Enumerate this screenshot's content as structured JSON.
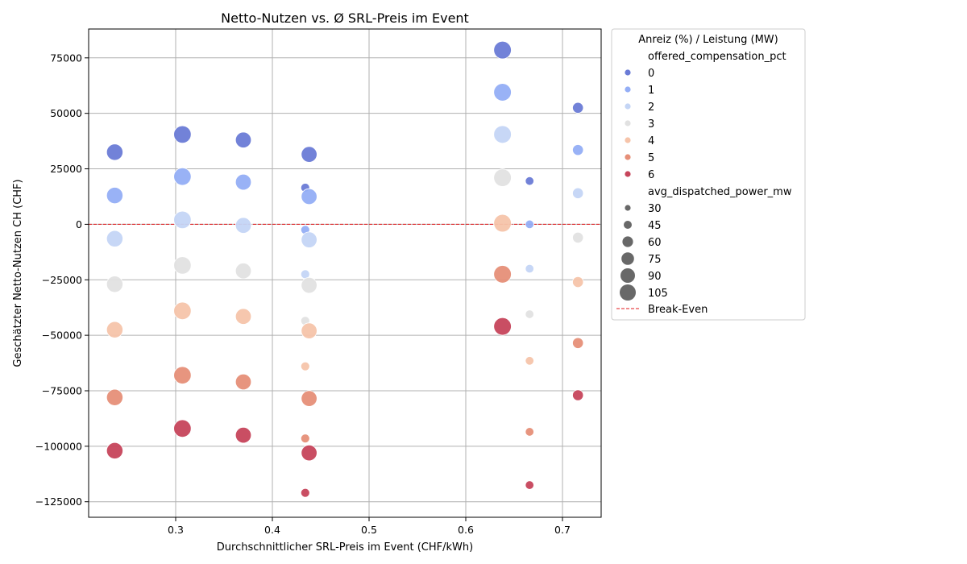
{
  "chart_data": {
    "type": "scatter",
    "title": "Netto-Nutzen vs. Ø SRL-Preis im Event",
    "xlabel": "Durchschnittlicher SRL-Preis im Event (CHF/kWh)",
    "ylabel": "Geschätzter Netto-Nutzen CH (CHF)",
    "xlim": [
      0.21,
      0.74
    ],
    "ylim": [
      -132000,
      88000
    ],
    "xticks": [
      0.3,
      0.4,
      0.5,
      0.6,
      0.7
    ],
    "xtick_labels": [
      "0.3",
      "0.4",
      "0.5",
      "0.6",
      "0.7"
    ],
    "yticks": [
      75000,
      50000,
      25000,
      0,
      -25000,
      -50000,
      -75000,
      -100000,
      -125000
    ],
    "ytick_labels": [
      "75000",
      "50000",
      "25000",
      "0",
      "−25000",
      "−50000",
      "−75000",
      "−100000",
      "−125000"
    ],
    "grid": true,
    "break_even": {
      "y": 0,
      "label": "Break-Even",
      "color": "#e31a1c"
    },
    "legend": {
      "position": "outside-right",
      "title": "Anreiz (%) / Leistung (MW)",
      "hue_title": "offered_compensation_pct",
      "size_title": "avg_dispatched_power_mw",
      "hue_levels": [
        "0",
        "1",
        "2",
        "3",
        "4",
        "5",
        "6"
      ],
      "size_levels": [
        "30",
        "45",
        "60",
        "75",
        "90",
        "105"
      ]
    },
    "colors": [
      "#6a7bd6",
      "#94aef6",
      "#c4d5f5",
      "#e1e1e1",
      "#f6c4aa",
      "#e68f78",
      "#c6455b"
    ],
    "groups": [
      {
        "x": 0.237,
        "power": 95,
        "values": [
          32500,
          13000,
          -6500,
          -27000,
          -47500,
          -78000,
          -102000
        ]
      },
      {
        "x": 0.307,
        "power": 108,
        "values": [
          40500,
          21500,
          2000,
          -18500,
          -39000,
          -68000,
          -92000
        ]
      },
      {
        "x": 0.37,
        "power": 88,
        "values": [
          38000,
          19000,
          -500,
          -21000,
          -41500,
          -71000,
          -95000
        ]
      },
      {
        "x": 0.434,
        "power": 30,
        "values": [
          16500,
          -2500,
          -22500,
          -43500,
          -64000,
          -96500,
          -121000
        ]
      },
      {
        "x": 0.438,
        "power": 88,
        "values": [
          31500,
          12500,
          -7000,
          -27500,
          -48000,
          -78500,
          -103000
        ]
      },
      {
        "x": 0.638,
        "power": 110,
        "values": [
          78500,
          59500,
          40500,
          21000,
          500,
          -22500,
          -46000
        ]
      },
      {
        "x": 0.666,
        "power": 28,
        "values": [
          19500,
          0,
          -20000,
          -40500,
          -61500,
          -93500,
          -117500
        ]
      },
      {
        "x": 0.716,
        "power": 45,
        "values": [
          52500,
          33500,
          14000,
          -6000,
          -26000,
          -53500,
          -77000
        ]
      }
    ]
  }
}
